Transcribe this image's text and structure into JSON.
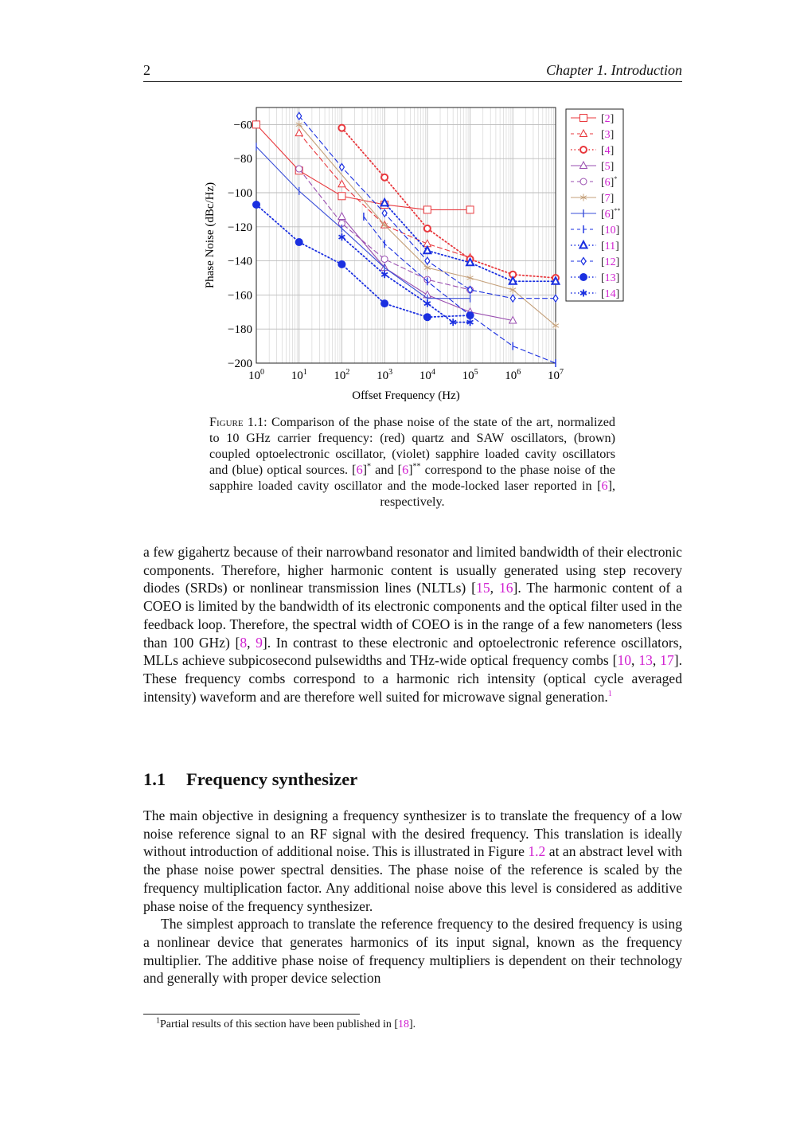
{
  "header": {
    "page_number": "2",
    "chapter": "Chapter 1.  Introduction"
  },
  "figure": {
    "caption_label": "Figure 1.1:",
    "caption_parts": [
      {
        "t": " Comparison of the phase noise of the state of the art, normalized to 10 GHz carrier frequency: (red) quartz and SAW oscillators, (brown) coupled optoelectronic oscillator, (violet) sapphire loaded cavity oscillators and (blue) optical sources. ",
        "link": false
      },
      {
        "t": "[",
        "link": false
      },
      {
        "t": "6",
        "link": true
      },
      {
        "t": "]",
        "link": false
      },
      {
        "t": "*",
        "sup": true
      },
      {
        "t": " and [",
        "link": false
      },
      {
        "t": "6",
        "link": true
      },
      {
        "t": "]",
        "link": false
      },
      {
        "t": "**",
        "sup": true
      },
      {
        "t": " correspond to the phase noise of the sapphire loaded cavity oscillator and the mode-locked laser reported in [",
        "link": false
      },
      {
        "t": "6",
        "link": true
      },
      {
        "t": "], respectively.",
        "link": false
      }
    ]
  },
  "chart_data": {
    "type": "line",
    "xlabel": "Offset Frequency (Hz)",
    "ylabel": "Phase Noise (dBc/Hz)",
    "xscale": "log",
    "xlim": [
      1,
      10000000
    ],
    "ylim": [
      -200,
      -50
    ],
    "xticks": [
      "10^0",
      "10^1",
      "10^2",
      "10^3",
      "10^4",
      "10^5",
      "10^6",
      "10^7"
    ],
    "yticks": [
      -60,
      -80,
      -100,
      -120,
      -140,
      -160,
      -180,
      -200
    ],
    "grid": true,
    "legend_position": "outside-right",
    "series": [
      {
        "name": "[2]",
        "color": "#e8383d",
        "line": "solid",
        "marker": "square",
        "x": [
          1,
          10,
          100,
          1000,
          10000,
          100000
        ],
        "y": [
          -60,
          -87,
          -102,
          -107,
          -110,
          -110
        ]
      },
      {
        "name": "[3]",
        "color": "#e8383d",
        "line": "dashed",
        "marker": "triangle",
        "x": [
          10,
          100,
          1000,
          10000,
          100000
        ],
        "y": [
          -65,
          -95,
          -119,
          -130,
          -138
        ]
      },
      {
        "name": "[4]",
        "color": "#e8383d",
        "line": "dotted",
        "marker": "circle-thick",
        "x": [
          100,
          1000,
          10000,
          100000,
          1000000,
          10000000
        ],
        "y": [
          -62,
          -91,
          -121,
          -139,
          -148,
          -150
        ]
      },
      {
        "name": "[5]",
        "color": "#9a4fb0",
        "line": "solid",
        "marker": "triangle",
        "x": [
          100,
          1000,
          10000,
          100000,
          1000000
        ],
        "y": [
          -114,
          -144,
          -160,
          -170,
          -175
        ]
      },
      {
        "name": "[6]",
        "sup": "*",
        "color": "#9a4fb0",
        "line": "dashed",
        "marker": "circle",
        "x": [
          10,
          100,
          1000,
          10000,
          100000
        ],
        "y": [
          -86,
          -118,
          -139,
          -151,
          -157
        ]
      },
      {
        "name": "[7]",
        "color": "#c4a07a",
        "line": "solid",
        "marker": "star",
        "x": [
          10,
          1000,
          10000,
          100000,
          1000000,
          10000000
        ],
        "y": [
          -60,
          -119,
          -144,
          -150,
          -157,
          -178
        ]
      },
      {
        "name": "[6]",
        "sup": "**",
        "color": "#3a4fd8",
        "line": "solid",
        "marker": "bar",
        "x": [
          1,
          10,
          100,
          1000,
          10000,
          100000
        ],
        "y": [
          -73,
          -99,
          -121,
          -144,
          -162,
          -162
        ]
      },
      {
        "name": "[10]",
        "color": "#1a2fe0",
        "line": "dashed",
        "marker": "bar",
        "x": [
          325,
          1000,
          10000,
          100000,
          1000000,
          10000000
        ],
        "y": [
          -114,
          -130,
          -152,
          -172,
          -190,
          -200
        ]
      },
      {
        "name": "[11]",
        "color": "#1a2fe0",
        "line": "dotted",
        "marker": "triangle-thick",
        "x": [
          1000,
          10000,
          100000,
          1000000,
          10000000
        ],
        "y": [
          -106,
          -134,
          -141,
          -152,
          -152
        ]
      },
      {
        "name": "[12]",
        "color": "#1a2fe0",
        "line": "dashed",
        "marker": "diamond",
        "x": [
          10,
          100,
          1000,
          10000,
          100000,
          1000000,
          10000000
        ],
        "y": [
          -55,
          -85,
          -112,
          -140,
          -157,
          -162,
          -162
        ]
      },
      {
        "name": "[13]",
        "color": "#1a2fe0",
        "line": "dotted",
        "marker": "filled-circle",
        "x": [
          1,
          10,
          100,
          1000,
          10000,
          100000
        ],
        "y": [
          -107,
          -129,
          -142,
          -165,
          -173,
          -172
        ]
      },
      {
        "name": "[14]",
        "color": "#1a2fe0",
        "line": "dotted",
        "marker": "asterisk",
        "x": [
          100,
          1000,
          10000,
          40000,
          100000
        ],
        "y": [
          -126,
          -148,
          -165,
          -176,
          -176
        ]
      }
    ]
  },
  "paragraph1": [
    {
      "t": "a few gigahertz because of their narrowband resonator and limited bandwidth of their electronic components.  Therefore, higher harmonic content is usually generated using step recovery diodes (SRDs) or nonlinear transmission lines (NLTLs) ["
    },
    {
      "t": "15",
      "link": true
    },
    {
      "t": ", "
    },
    {
      "t": "16",
      "link": true
    },
    {
      "t": "].  The harmonic content of a COEO is limited by the bandwidth of its electronic components and the optical filter used in the feedback loop.  Therefore, the spectral width of COEO is in the range of a few nanometers (less than 100 GHz) ["
    },
    {
      "t": "8",
      "link": true
    },
    {
      "t": ", "
    },
    {
      "t": "9",
      "link": true
    },
    {
      "t": "].  In contrast to these electronic and optoelectronic reference oscillators, MLLs achieve subpicosecond pulsewidths and THz-wide optical frequency combs ["
    },
    {
      "t": "10",
      "link": true
    },
    {
      "t": ", "
    },
    {
      "t": "13",
      "link": true
    },
    {
      "t": ", "
    },
    {
      "t": "17",
      "link": true
    },
    {
      "t": "].  These frequency combs correspond to a harmonic rich intensity (optical cycle averaged intensity) waveform and are therefore well suited for microwave signal generation."
    },
    {
      "t": "1",
      "link": true,
      "sup": true
    }
  ],
  "section": {
    "number": "1.1",
    "title": "Frequency synthesizer"
  },
  "paragraph2": [
    {
      "t": "The main objective in designing a frequency synthesizer is to translate the frequency of a low noise reference signal to an RF signal with the desired frequency.  This translation is ideally without introduction of additional noise.  This is illustrated in Figure "
    },
    {
      "t": "1.2",
      "link": true
    },
    {
      "t": " at an abstract level with the phase noise power spectral densities.  The phase noise of the reference is scaled by the frequency multiplication factor.  Any additional noise above this level is considered as additive phase noise of the frequency synthesizer."
    }
  ],
  "paragraph3": [
    {
      "t": "The simplest approach to translate the reference frequency to the desired frequency is using a nonlinear device that generates harmonics of its input signal, known as the frequency multiplier.  The additive phase noise of frequency multipliers is dependent on their technology and generally with proper device selection"
    }
  ],
  "footnote": [
    {
      "t": "1",
      "sup": true
    },
    {
      "t": "Partial results of this section have been published in ["
    },
    {
      "t": "18",
      "link": true
    },
    {
      "t": "]."
    }
  ]
}
